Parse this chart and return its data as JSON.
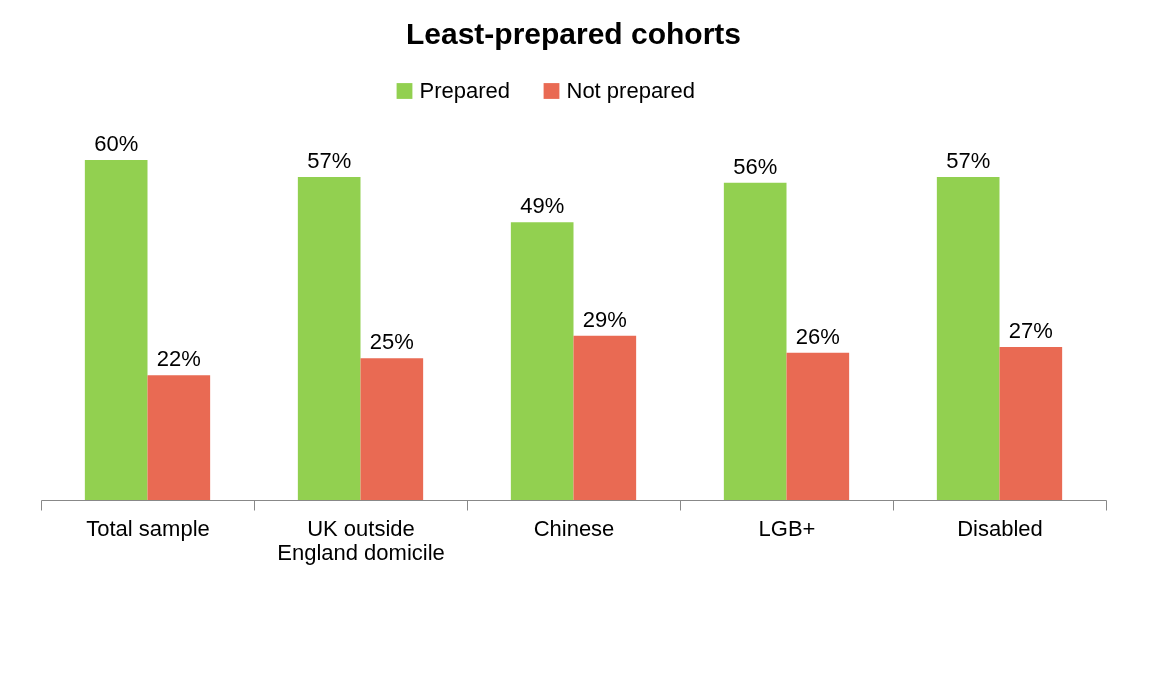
{
  "chart_data": {
    "type": "bar",
    "title": "Least-prepared cohorts",
    "categories": [
      "Total sample",
      "UK outside England domicile",
      "Chinese",
      "LGB+",
      "Disabled"
    ],
    "series": [
      {
        "name": "Prepared",
        "color": "#92d050",
        "values": [
          60,
          57,
          49,
          56,
          57
        ],
        "value_labels": [
          "60%",
          "57%",
          "49%",
          "56%",
          "57%"
        ]
      },
      {
        "name": "Not prepared",
        "color": "#e96a53",
        "values": [
          22,
          25,
          29,
          26,
          27
        ],
        "value_labels": [
          "22%",
          "25%",
          "29%",
          "26%",
          "27%"
        ]
      }
    ],
    "legend": "top",
    "grid": false,
    "tick_labels": "x"
  }
}
